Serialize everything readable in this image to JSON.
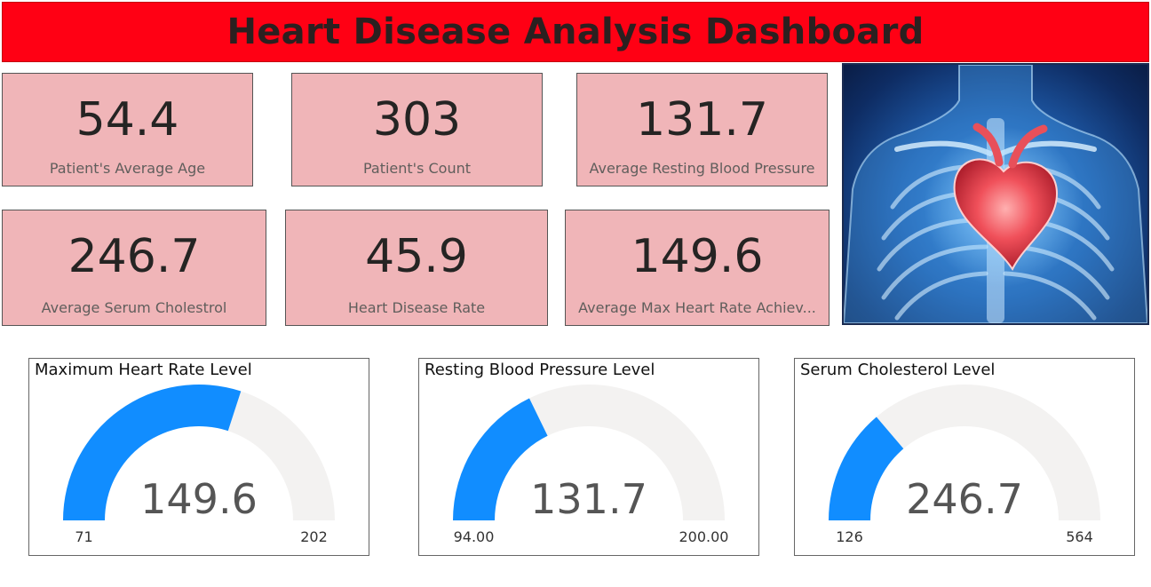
{
  "header": {
    "title": "Heart Disease Analysis Dashboard"
  },
  "cards": [
    {
      "value": "54.4",
      "label": "Patient's Average Age"
    },
    {
      "value": "303",
      "label": "Patient's Count"
    },
    {
      "value": "131.7",
      "label": "Average Resting Blood Pressure"
    },
    {
      "value": "246.7",
      "label": "Average Serum Cholestrol"
    },
    {
      "value": "45.9",
      "label": "Heart Disease Rate"
    },
    {
      "value": "149.6",
      "label": "Average Max Heart Rate Achiev..."
    }
  ],
  "image": {
    "icon": "heart-chest-xray-illustration"
  },
  "colors": {
    "header": "#ff0014",
    "card": "#f0b5b8",
    "gauge_fill": "#118dff",
    "gauge_track": "#f3f2f1"
  },
  "chart_data": [
    {
      "type": "gauge",
      "title": "Maximum Heart Rate Level",
      "value": 149.6,
      "value_label": "149.6",
      "min": 71,
      "max": 202,
      "min_label": "71",
      "max_label": "202"
    },
    {
      "type": "gauge",
      "title": "Resting Blood Pressure Level",
      "value": 131.7,
      "value_label": "131.7",
      "min": 94,
      "max": 200,
      "min_label": "94.00",
      "max_label": "200.00"
    },
    {
      "type": "gauge",
      "title": "Serum Cholesterol Level",
      "value": 246.7,
      "value_label": "246.7",
      "min": 126,
      "max": 564,
      "min_label": "126",
      "max_label": "564"
    }
  ]
}
